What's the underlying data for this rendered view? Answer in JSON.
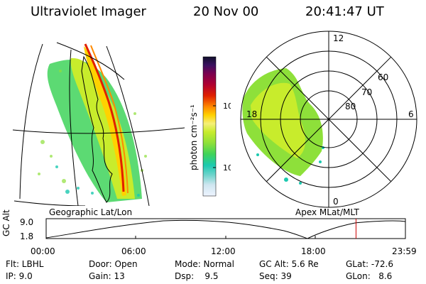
{
  "header": {
    "instrument": "Ultraviolet Imager",
    "date": "20 Nov 00",
    "time": "20:41:47 UT"
  },
  "left_panel": {
    "caption": "Geographic Lat/Lon"
  },
  "right_panel": {
    "caption": "Apex MLat/MLT",
    "mlt_labels": [
      "12",
      "6",
      "0",
      "18"
    ],
    "lat_labels": [
      "60",
      "70",
      "80"
    ]
  },
  "colorbar": {
    "label": "photon cm⁻²s⁻¹",
    "ticks": [
      "100",
      "10"
    ],
    "colors": [
      "#eef4ff",
      "#cfe6f0",
      "#6fd4cc",
      "#1cc9b0",
      "#3fd35a",
      "#8ee03a",
      "#c8ec2c",
      "#f5f078",
      "#ffd200",
      "#ff8a00",
      "#e02000",
      "#b00030",
      "#7a0050",
      "#3a1060",
      "#10102a"
    ]
  },
  "altitude_strip": {
    "label": "GC Alt",
    "y_max": "9.0",
    "y_min": "1.8",
    "time_ticks": [
      "00:00",
      "06:00",
      "12:00",
      "18:00",
      "23:59"
    ],
    "marker_hour": 20.7,
    "marker_color": "#cc0000"
  },
  "footer": {
    "row1": {
      "flt": "Flt: LBHL",
      "door": "Door: Open",
      "mode": "Mode: Normal",
      "gcalt": "GC Alt: 5.6 Re",
      "glat": "GLat: -72.6"
    },
    "row2": {
      "ip": "IP:  9.0",
      "gain": "Gain: 13",
      "dsp": "Dsp:    9.5",
      "seq": "Seq: 39",
      "glon": "GLon:   8.6"
    }
  }
}
